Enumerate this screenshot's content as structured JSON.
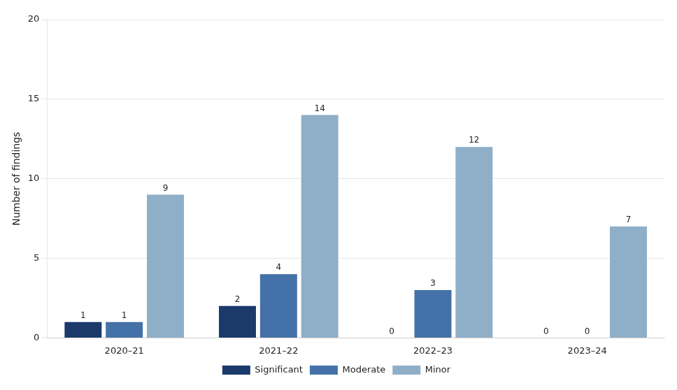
{
  "chart_data": {
    "type": "bar",
    "categories": [
      "2020–21",
      "2021–22",
      "2022–23",
      "2023–24"
    ],
    "series": [
      {
        "name": "Significant",
        "color": "#1b3a6b",
        "values": [
          1,
          2,
          0,
          0
        ]
      },
      {
        "name": "Moderate",
        "color": "#4472a8",
        "values": [
          1,
          4,
          3,
          0
        ]
      },
      {
        "name": "Minor",
        "color": "#8fafc8",
        "values": [
          9,
          14,
          12,
          7
        ]
      }
    ],
    "ylabel": "Number of findings",
    "ylim": [
      0,
      20
    ],
    "yticks": [
      0,
      5,
      10,
      15,
      20
    ],
    "grid": true,
    "legend": "bottom",
    "data_labels": true
  }
}
